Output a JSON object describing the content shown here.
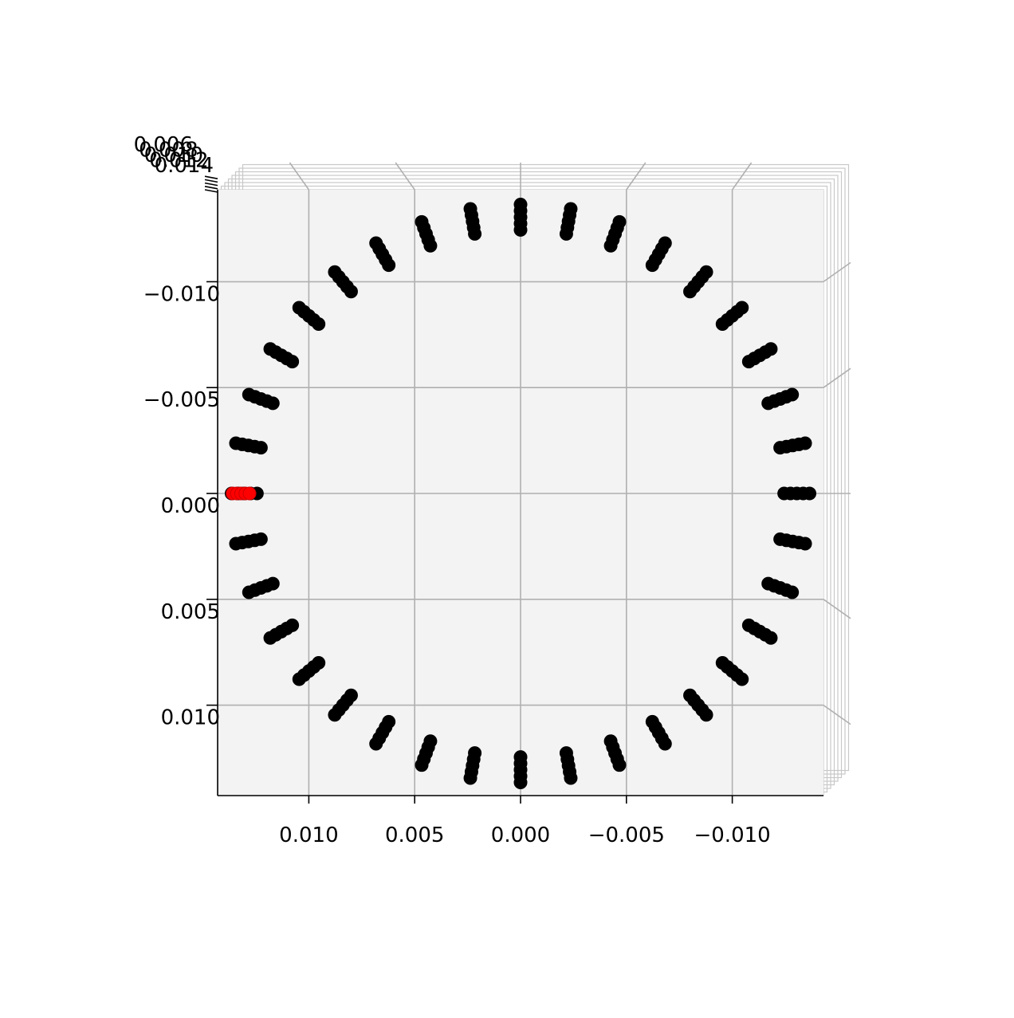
{
  "chart_data": {
    "type": "scatter",
    "projection": "3d",
    "title": "",
    "xlabel": "",
    "ylabel": "",
    "zlabel": "",
    "xlim": [
      0.0143,
      -0.0143
    ],
    "ylim": [
      -0.0143,
      0.0143
    ],
    "x_ticks": [
      0.01,
      0.005,
      0.0,
      -0.005,
      -0.01
    ],
    "x_tick_labels": [
      "0.010",
      "0.005",
      "0.000",
      "−0.005",
      "−0.010"
    ],
    "y_ticks": [
      -0.01,
      -0.005,
      0.0,
      0.005,
      0.01
    ],
    "y_tick_labels": [
      "−0.010",
      "−0.005",
      "0.000",
      "0.005",
      "0.010"
    ],
    "z_tick_labels": [
      "0.006",
      "0.008",
      "0.010",
      "0.012",
      "0.014"
    ],
    "z_range": [
      0.006,
      0.014
    ],
    "grid": true,
    "colors": {
      "points": "#000000",
      "highlight": "#ff0000",
      "pane": "#f3f3f3",
      "grid": "#b0b0b0"
    },
    "series": [
      {
        "marker": "circle",
        "color": "#000000",
        "ring_radius": 0.01365,
        "n_spokes": 36,
        "spoke_length": 0.0012,
        "points_per_spoke": 5
      },
      {
        "marker": "circle",
        "color": "#ff0000",
        "points": [
          {
            "x": 0.0136,
            "y": 0.0
          },
          {
            "x": 0.0134,
            "y": 0.0
          },
          {
            "x": 0.0132,
            "y": 0.0
          },
          {
            "x": 0.013,
            "y": 0.0
          },
          {
            "x": 0.0128,
            "y": 0.0
          }
        ]
      }
    ]
  }
}
